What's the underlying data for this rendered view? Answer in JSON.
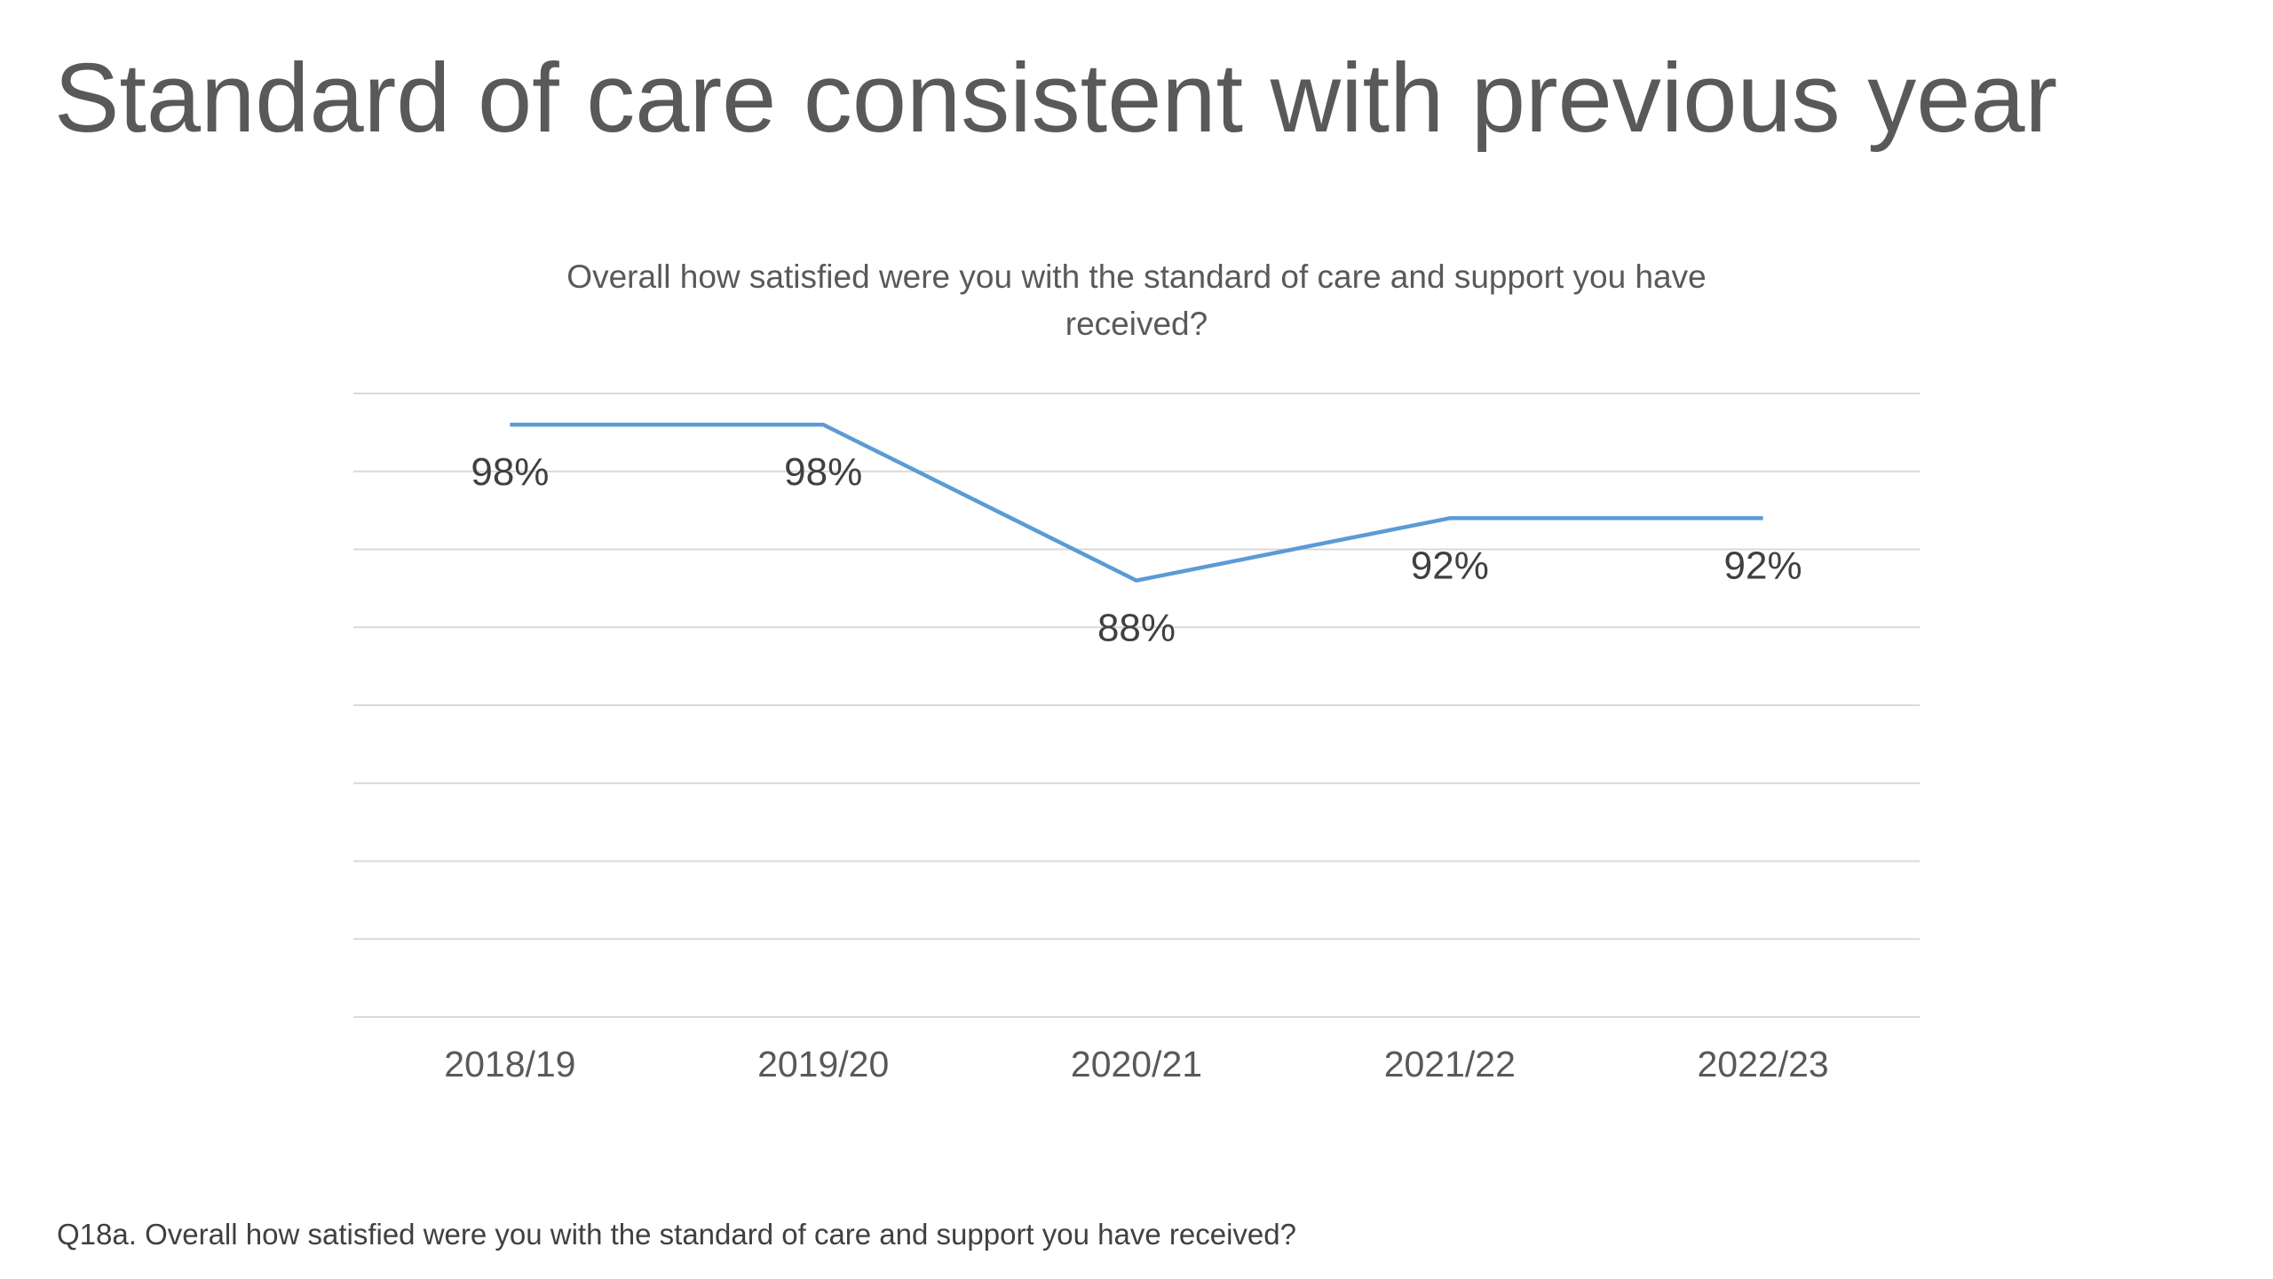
{
  "slide": {
    "title": "Standard of care consistent with previous year",
    "footnote": "Q18a. Overall how satisfied were you with the standard of care and support you have received?"
  },
  "chart_data": {
    "type": "line",
    "title": "Overall how satisfied were you with the standard of care and support you have received?",
    "categories": [
      "2018/19",
      "2019/20",
      "2020/21",
      "2021/22",
      "2022/23"
    ],
    "series": [
      {
        "values": [
          98,
          98,
          88,
          92,
          92
        ],
        "data_labels": [
          "98%",
          "98%",
          "88%",
          "92%",
          "92%"
        ],
        "color": "#5b9bd5"
      }
    ],
    "ylim": [
      60,
      100
    ],
    "grid": true,
    "legend": "none",
    "gridline_color": "#d9d9d9",
    "label_color": "#404040",
    "tick_color": "#595959"
  }
}
